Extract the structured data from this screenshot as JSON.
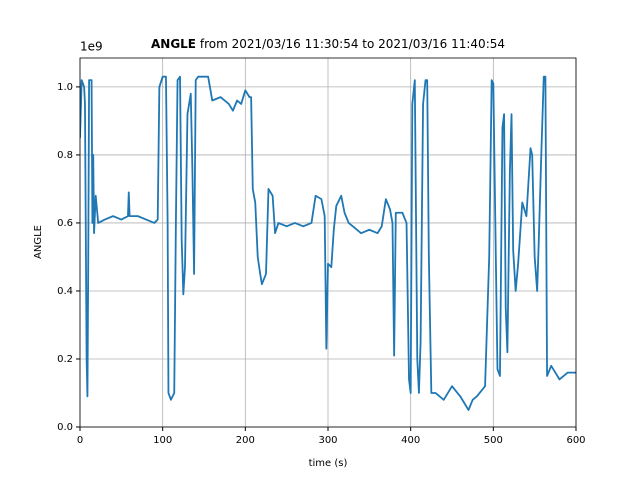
{
  "chart_data": {
    "type": "line",
    "title_bold": "ANGLE",
    "title_rest": "from 2021/03/16 11:30:54 to 2021/03/16 11:40:54",
    "x_label": "time (s)",
    "y_label": "ANGLE",
    "y_offset_text": "1e9",
    "xlim": [
      0,
      600
    ],
    "xticks": [
      0,
      100,
      200,
      300,
      400,
      500,
      600
    ],
    "ylim": [
      0,
      1.085
    ],
    "yticks": [
      {
        "value": 0,
        "label": "0.0"
      },
      0.2,
      0.4,
      0.6,
      0.8,
      {
        "value": 1,
        "label": "1.0"
      }
    ],
    "grid": true,
    "series": [
      {
        "color": "#1f77b4",
        "x": [
          0,
          2,
          5,
          6,
          8,
          9,
          10,
          11,
          14,
          15,
          16,
          17,
          19,
          22,
          30,
          40,
          50,
          58,
          59,
          60,
          70,
          80,
          90,
          94,
          96,
          100,
          104,
          106,
          107,
          110,
          114,
          116,
          118,
          121,
          123,
          125,
          127,
          130,
          134,
          136,
          138,
          140,
          143,
          150,
          155,
          160,
          170,
          180,
          185,
          190,
          195,
          200,
          205,
          207,
          209,
          212,
          215,
          218,
          220,
          225,
          228,
          233,
          236,
          240,
          250,
          260,
          270,
          280,
          285,
          292,
          296,
          298,
          300,
          304,
          307,
          310,
          316,
          320,
          325,
          330,
          340,
          350,
          360,
          365,
          370,
          375,
          378,
          380,
          382,
          390,
          395,
          398,
          400,
          402,
          405,
          408,
          410,
          412,
          415,
          418,
          420,
          422,
          425,
          430,
          440,
          450,
          460,
          470,
          475,
          480,
          490,
          495,
          498,
          500,
          503,
          505,
          508,
          511,
          513,
          515,
          517,
          520,
          522,
          524,
          527,
          530,
          535,
          540,
          545,
          547,
          550,
          553,
          555,
          558,
          561,
          563,
          565,
          570,
          575,
          580,
          590,
          600
        ],
        "values": [
          0.85,
          1.02,
          1.0,
          0.95,
          0.2,
          0.09,
          0.5,
          1.02,
          1.02,
          0.6,
          0.8,
          0.57,
          0.68,
          0.6,
          0.61,
          0.62,
          0.61,
          0.62,
          0.69,
          0.62,
          0.62,
          0.61,
          0.6,
          0.61,
          1.0,
          1.03,
          1.03,
          0.6,
          0.1,
          0.08,
          0.1,
          0.6,
          1.02,
          1.03,
          0.55,
          0.39,
          0.47,
          0.92,
          0.98,
          0.75,
          0.45,
          1.02,
          1.03,
          1.03,
          1.03,
          0.96,
          0.97,
          0.95,
          0.93,
          0.96,
          0.95,
          0.99,
          0.97,
          0.97,
          0.7,
          0.66,
          0.5,
          0.45,
          0.42,
          0.45,
          0.7,
          0.68,
          0.57,
          0.6,
          0.59,
          0.6,
          0.59,
          0.6,
          0.68,
          0.67,
          0.62,
          0.23,
          0.48,
          0.47,
          0.58,
          0.65,
          0.68,
          0.63,
          0.6,
          0.59,
          0.57,
          0.58,
          0.57,
          0.59,
          0.67,
          0.64,
          0.6,
          0.21,
          0.63,
          0.63,
          0.6,
          0.14,
          0.1,
          0.95,
          1.02,
          0.2,
          0.1,
          0.25,
          0.95,
          1.02,
          1.02,
          0.5,
          0.1,
          0.1,
          0.08,
          0.12,
          0.09,
          0.05,
          0.08,
          0.09,
          0.12,
          0.5,
          1.02,
          1.01,
          0.5,
          0.17,
          0.15,
          0.88,
          0.92,
          0.35,
          0.22,
          0.75,
          0.92,
          0.52,
          0.4,
          0.48,
          0.66,
          0.62,
          0.82,
          0.8,
          0.5,
          0.4,
          0.55,
          0.8,
          1.03,
          1.03,
          0.15,
          0.18,
          0.16,
          0.14,
          0.16,
          0.16
        ]
      }
    ]
  }
}
